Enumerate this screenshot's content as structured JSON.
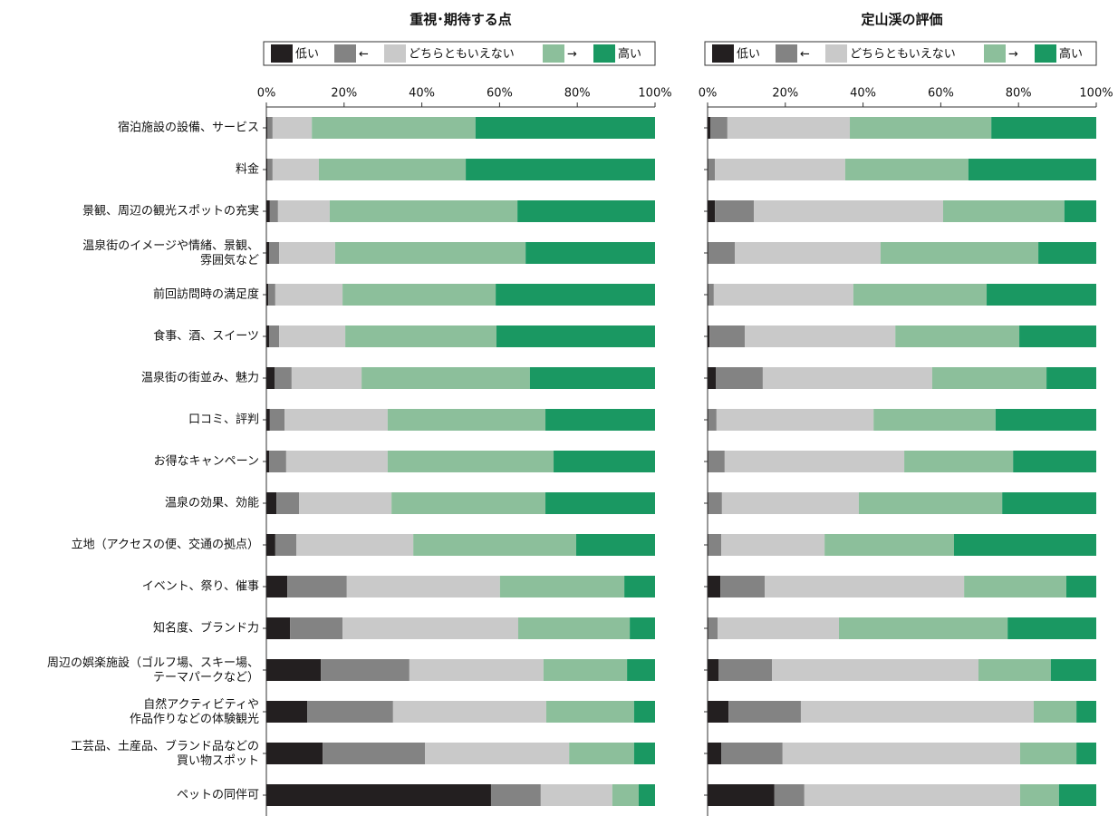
{
  "chart_data": [
    {
      "type": "stacked-barh",
      "title": "重視･期待する点",
      "categories": [
        "宿泊施設の設備、サービス",
        "料金",
        "景観、周辺の観光スポットの充実",
        "温泉街のイメージや情緒、景観、\n雰囲気など",
        "前回訪問時の満足度",
        "食事、酒、スイーツ",
        "温泉街の街並み、魅力",
        "口コミ、評判",
        "お得なキャンペーン",
        "温泉の効果、効能",
        "立地（アクセスの便、交通の拠点）",
        "イベント、祭り、催事",
        "知名度、ブランド力",
        "周辺の娯楽施設（ゴルフ場、スキー場、\nテーマパークなど）",
        "自然アクティビティや\n作品作りなどの体験観光",
        "工芸品、土産品、ブランド品などの\n買い物スポット",
        "ペットの同伴可"
      ],
      "series": [
        {
          "name": "低い",
          "color": "#231f20",
          "values": [
            0.3,
            0.3,
            0.9,
            0.7,
            0.5,
            0.7,
            2.1,
            0.9,
            0.7,
            2.6,
            2.3,
            5.4,
            6.1,
            14.0,
            10.5,
            14.5,
            57.8
          ]
        },
        {
          "name": "←",
          "color": "#838383",
          "values": [
            1.3,
            1.3,
            2.1,
            2.6,
            1.8,
            2.6,
            4.4,
            3.8,
            4.4,
            5.8,
            5.4,
            15.3,
            13.5,
            22.8,
            22.1,
            26.3,
            12.8
          ]
        },
        {
          "name": "どちらともいえない",
          "color": "#c9c9c9",
          "values": [
            10.1,
            11.9,
            13.3,
            14.4,
            17.3,
            17.0,
            18.0,
            26.5,
            26.1,
            23.8,
            30.1,
            39.4,
            45.2,
            34.5,
            39.4,
            37.1,
            18.4
          ]
        },
        {
          "name": "→",
          "color": "#8cbf9b",
          "values": [
            42.1,
            37.8,
            48.3,
            49.0,
            39.4,
            38.9,
            43.3,
            40.6,
            42.7,
            39.6,
            41.9,
            32.0,
            28.7,
            21.5,
            22.6,
            16.7,
            6.8
          ]
        },
        {
          "name": "高い",
          "color": "#1a9862",
          "values": [
            46.2,
            48.7,
            35.4,
            33.3,
            41.0,
            40.8,
            32.2,
            28.2,
            26.1,
            28.2,
            20.3,
            7.9,
            6.5,
            7.2,
            5.4,
            5.4,
            4.2
          ]
        }
      ],
      "xlim": [
        0,
        100
      ],
      "xticks": [
        {
          "value": 0,
          "label": "0%"
        },
        {
          "value": 20,
          "label": "20%"
        },
        {
          "value": 40,
          "label": "40%"
        },
        {
          "value": 60,
          "label": "60%"
        },
        {
          "value": 80,
          "label": "80%"
        },
        {
          "value": 100,
          "label": "100%"
        }
      ]
    },
    {
      "type": "stacked-barh",
      "title": "定山渓の評価",
      "series": [
        {
          "name": "低い",
          "color": "#231f20",
          "values": [
            0.7,
            0.2,
            1.9,
            0.2,
            0.2,
            0.5,
            2.1,
            0.2,
            0.2,
            0.2,
            0.2,
            3.3,
            0.2,
            2.8,
            5.4,
            3.5,
            17.2
          ]
        },
        {
          "name": "←",
          "color": "#838383",
          "values": [
            4.4,
            1.7,
            10.0,
            6.8,
            1.4,
            9.1,
            12.1,
            2.1,
            4.2,
            3.5,
            3.3,
            11.4,
            2.4,
            13.8,
            18.6,
            15.8,
            7.7
          ]
        },
        {
          "name": "どちらともいえない",
          "color": "#c9c9c9",
          "values": [
            31.5,
            33.5,
            48.7,
            37.5,
            35.9,
            38.7,
            43.6,
            40.4,
            46.2,
            35.2,
            26.6,
            51.3,
            31.2,
            53.1,
            59.9,
            61.1,
            55.5
          ]
        },
        {
          "name": "→",
          "color": "#8cbf9b",
          "values": [
            36.4,
            31.7,
            31.2,
            40.6,
            34.3,
            31.9,
            29.4,
            31.4,
            28.0,
            36.9,
            33.3,
            26.3,
            43.4,
            18.6,
            11.0,
            14.5,
            10.0
          ]
        },
        {
          "name": "高い",
          "color": "#1a9862",
          "values": [
            27.0,
            32.9,
            8.2,
            14.9,
            28.2,
            19.8,
            12.8,
            25.9,
            21.4,
            24.2,
            36.6,
            7.7,
            22.8,
            11.7,
            5.1,
            5.1,
            9.6
          ]
        }
      ],
      "xlim": [
        0,
        100
      ],
      "xticks": [
        {
          "value": 0,
          "label": "0%"
        },
        {
          "value": 20,
          "label": "20%"
        },
        {
          "value": 40,
          "label": "40%"
        },
        {
          "value": 60,
          "label": "60%"
        },
        {
          "value": 80,
          "label": "80%"
        },
        {
          "value": 100,
          "label": "100%"
        }
      ]
    }
  ]
}
